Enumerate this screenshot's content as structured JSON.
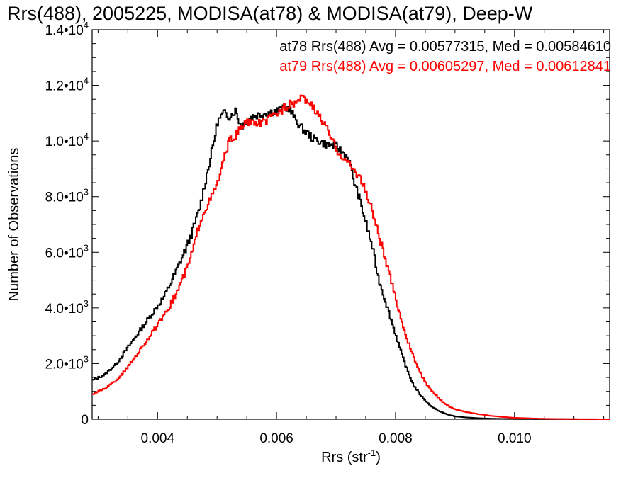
{
  "chart_data": {
    "type": "line",
    "title": "Rrs(488), 2005225, MODISA(at78) & MODISA(at79), Deep-W",
    "xlabel": "Rrs (str",
    "xlabel_sup": "-1",
    "xlabel_end": ")",
    "ylabel": "Number of Observations",
    "xlim": [
      0.0029,
      0.0116
    ],
    "ylim": [
      0,
      14000
    ],
    "x_ticks": [
      {
        "value": 0.004,
        "label": "0.004"
      },
      {
        "value": 0.006,
        "label": "0.006"
      },
      {
        "value": 0.008,
        "label": "0.008"
      },
      {
        "value": 0.01,
        "label": "0.010"
      }
    ],
    "y_ticks": [
      {
        "value": 0,
        "label": "0",
        "sup": ""
      },
      {
        "value": 2000,
        "label": "2.0•10",
        "sup": "3"
      },
      {
        "value": 4000,
        "label": "4.0•10",
        "sup": "3"
      },
      {
        "value": 6000,
        "label": "6.0•10",
        "sup": "3"
      },
      {
        "value": 8000,
        "label": "8.0•10",
        "sup": "3"
      },
      {
        "value": 10000,
        "label": "1.0•10",
        "sup": "4"
      },
      {
        "value": 12000,
        "label": "1.2•10",
        "sup": "4"
      },
      {
        "value": 14000,
        "label": "1.4•10",
        "sup": "4"
      }
    ],
    "legend_position": "top-right",
    "grid": false,
    "series": [
      {
        "legend": "at78 Rrs(488) Avg = 0.00577315, Med = 0.00584610",
        "color": "#000000",
        "x": [
          0.0029,
          0.0031,
          0.0033,
          0.0035,
          0.0037,
          0.0039,
          0.0041,
          0.0043,
          0.0045,
          0.0046,
          0.0047,
          0.0048,
          0.0049,
          0.005,
          0.0051,
          0.0052,
          0.0053,
          0.0054,
          0.0055,
          0.0056,
          0.0058,
          0.006,
          0.0062,
          0.0063,
          0.0064,
          0.0066,
          0.0068,
          0.007,
          0.0072,
          0.0073,
          0.0074,
          0.0075,
          0.0076,
          0.0077,
          0.0078,
          0.0079,
          0.008,
          0.0081,
          0.0082,
          0.0083,
          0.0084,
          0.0085,
          0.0086,
          0.0087,
          0.0088,
          0.0089,
          0.009,
          0.0092,
          0.0094,
          0.0096,
          0.0098,
          0.01,
          0.0104,
          0.0108,
          0.0112,
          0.0116
        ],
        "y": [
          1400,
          1600,
          2000,
          2600,
          3200,
          3800,
          4400,
          5300,
          6300,
          6900,
          7600,
          8600,
          9600,
          10700,
          11000,
          10900,
          11100,
          10500,
          10800,
          10900,
          11000,
          11100,
          11200,
          10800,
          10500,
          10100,
          9900,
          9800,
          9400,
          8500,
          7800,
          7000,
          6200,
          5100,
          4400,
          3700,
          3000,
          2300,
          1700,
          1200,
          900,
          650,
          450,
          320,
          220,
          150,
          100,
          60,
          35,
          20,
          12,
          8,
          4,
          2,
          1,
          0
        ]
      },
      {
        "legend": "at79 Rrs(488) Avg = 0.00605297, Med = 0.00612841",
        "color": "#ff0000",
        "x": [
          0.0029,
          0.0031,
          0.0033,
          0.0035,
          0.0037,
          0.0039,
          0.0041,
          0.0043,
          0.0045,
          0.0046,
          0.0047,
          0.0048,
          0.0049,
          0.005,
          0.0051,
          0.0052,
          0.0053,
          0.0054,
          0.0055,
          0.0056,
          0.0058,
          0.006,
          0.0062,
          0.0063,
          0.0064,
          0.0065,
          0.0066,
          0.0068,
          0.007,
          0.0072,
          0.0074,
          0.0075,
          0.0076,
          0.0077,
          0.0078,
          0.0079,
          0.008,
          0.0081,
          0.0082,
          0.0083,
          0.0084,
          0.0085,
          0.0086,
          0.0087,
          0.0088,
          0.0089,
          0.009,
          0.0092,
          0.0094,
          0.0096,
          0.0098,
          0.01,
          0.0104,
          0.0108,
          0.0112,
          0.0116
        ],
        "y": [
          900,
          1100,
          1400,
          1900,
          2500,
          3100,
          3700,
          4500,
          5500,
          6200,
          7100,
          7600,
          8000,
          8500,
          9300,
          10000,
          10200,
          10500,
          10700,
          10600,
          10700,
          11000,
          11300,
          11400,
          11500,
          11500,
          11200,
          10600,
          9700,
          9200,
          8700,
          8100,
          7500,
          6700,
          5900,
          5100,
          4300,
          3500,
          2800,
          2200,
          1700,
          1300,
          1000,
          800,
          600,
          450,
          350,
          250,
          180,
          120,
          80,
          50,
          20,
          8,
          3,
          0
        ]
      }
    ]
  }
}
